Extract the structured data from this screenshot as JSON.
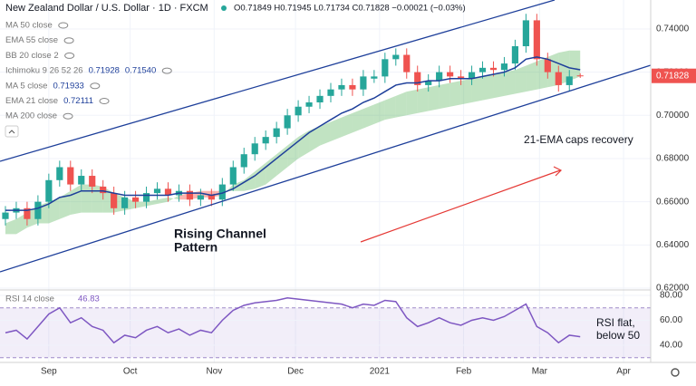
{
  "chart_data": {
    "type": "candlestick",
    "title": "New Zealand Dollar / U.S. Dollar · 1D · FXCM",
    "ohlc_header": "O0.71849 H0.71945 L0.71734 C0.71828 −0.00021 (−0.03%)",
    "indicators": [
      {
        "name": "MA 50 close"
      },
      {
        "name": "EMA 55 close"
      },
      {
        "name": "BB 20 close 2"
      },
      {
        "name": "Ichimoku 9 26 52 26",
        "values": [
          "0.71928",
          "0.71540"
        ]
      },
      {
        "name": "MA 5 close",
        "values": [
          "0.71933"
        ]
      },
      {
        "name": "EMA 21 close",
        "values": [
          "0.72111"
        ]
      },
      {
        "name": "MA 200 close"
      }
    ],
    "last_price_label": "0.71828",
    "up_color": "#26a69a",
    "down_color": "#ef5350",
    "x": [
      -16,
      -12,
      -8,
      -4,
      0,
      4,
      8,
      12,
      16,
      20,
      24,
      28,
      32,
      36,
      40,
      44,
      48,
      52,
      56,
      60,
      64,
      68,
      72,
      76,
      80,
      84,
      88,
      92,
      96,
      100,
      104,
      108,
      112,
      116,
      120,
      124,
      128,
      132,
      136,
      140,
      144,
      148,
      152,
      156,
      160,
      164,
      168,
      172,
      176,
      180,
      184,
      188,
      192,
      196
    ],
    "ohlc": [
      [
        0.652,
        0.658,
        0.649,
        0.655
      ],
      [
        0.655,
        0.66,
        0.652,
        0.657
      ],
      [
        0.657,
        0.66,
        0.649,
        0.652
      ],
      [
        0.652,
        0.663,
        0.649,
        0.66
      ],
      [
        0.66,
        0.673,
        0.657,
        0.67
      ],
      [
        0.67,
        0.679,
        0.667,
        0.676
      ],
      [
        0.676,
        0.679,
        0.665,
        0.668
      ],
      [
        0.668,
        0.675,
        0.665,
        0.672
      ],
      [
        0.672,
        0.675,
        0.664,
        0.667
      ],
      [
        0.667,
        0.67,
        0.661,
        0.664
      ],
      [
        0.664,
        0.667,
        0.654,
        0.657
      ],
      [
        0.657,
        0.665,
        0.654,
        0.662
      ],
      [
        0.662,
        0.665,
        0.657,
        0.66
      ],
      [
        0.66,
        0.667,
        0.657,
        0.664
      ],
      [
        0.664,
        0.669,
        0.661,
        0.666
      ],
      [
        0.666,
        0.669,
        0.66,
        0.663
      ],
      [
        0.663,
        0.668,
        0.66,
        0.665
      ],
      [
        0.665,
        0.668,
        0.658,
        0.661
      ],
      [
        0.661,
        0.666,
        0.658,
        0.663
      ],
      [
        0.663,
        0.666,
        0.658,
        0.661
      ],
      [
        0.661,
        0.671,
        0.658,
        0.668
      ],
      [
        0.668,
        0.679,
        0.665,
        0.676
      ],
      [
        0.676,
        0.685,
        0.673,
        0.682
      ],
      [
        0.682,
        0.69,
        0.679,
        0.687
      ],
      [
        0.687,
        0.693,
        0.684,
        0.69
      ],
      [
        0.69,
        0.697,
        0.687,
        0.694
      ],
      [
        0.694,
        0.703,
        0.691,
        0.7
      ],
      [
        0.7,
        0.707,
        0.697,
        0.704
      ],
      [
        0.704,
        0.709,
        0.701,
        0.706
      ],
      [
        0.706,
        0.712,
        0.703,
        0.709
      ],
      [
        0.709,
        0.715,
        0.706,
        0.712
      ],
      [
        0.712,
        0.717,
        0.709,
        0.714
      ],
      [
        0.714,
        0.717,
        0.709,
        0.712
      ],
      [
        0.712,
        0.721,
        0.709,
        0.718
      ],
      [
        0.717,
        0.721,
        0.715,
        0.718
      ],
      [
        0.718,
        0.729,
        0.715,
        0.726
      ],
      [
        0.726,
        0.731,
        0.723,
        0.728
      ],
      [
        0.728,
        0.731,
        0.717,
        0.72
      ],
      [
        0.72,
        0.723,
        0.711,
        0.714
      ],
      [
        0.714,
        0.719,
        0.711,
        0.716
      ],
      [
        0.716,
        0.723,
        0.713,
        0.72
      ],
      [
        0.72,
        0.723,
        0.715,
        0.718
      ],
      [
        0.718,
        0.721,
        0.714,
        0.717
      ],
      [
        0.717,
        0.723,
        0.714,
        0.72
      ],
      [
        0.72,
        0.725,
        0.717,
        0.722
      ],
      [
        0.722,
        0.725,
        0.718,
        0.721
      ],
      [
        0.721,
        0.727,
        0.718,
        0.724
      ],
      [
        0.724,
        0.735,
        0.721,
        0.732
      ],
      [
        0.732,
        0.747,
        0.729,
        0.744
      ],
      [
        0.744,
        0.747,
        0.723,
        0.726
      ],
      [
        0.726,
        0.729,
        0.717,
        0.72
      ],
      [
        0.72,
        0.723,
        0.711,
        0.714
      ],
      [
        0.714,
        0.721,
        0.711,
        0.718
      ],
      [
        0.71849,
        0.71945,
        0.71734,
        0.71828
      ]
    ],
    "ema21": {
      "color": "#1e3f9a",
      "values": [
        0.656,
        0.656,
        0.656,
        0.657,
        0.659,
        0.662,
        0.663,
        0.665,
        0.665,
        0.665,
        0.664,
        0.663,
        0.663,
        0.663,
        0.663,
        0.663,
        0.664,
        0.664,
        0.664,
        0.663,
        0.664,
        0.666,
        0.669,
        0.672,
        0.676,
        0.68,
        0.684,
        0.688,
        0.692,
        0.695,
        0.698,
        0.701,
        0.703,
        0.706,
        0.708,
        0.711,
        0.714,
        0.715,
        0.715,
        0.716,
        0.716,
        0.717,
        0.717,
        0.717,
        0.718,
        0.719,
        0.72,
        0.722,
        0.726,
        0.727,
        0.726,
        0.724,
        0.722,
        0.7211
      ]
    },
    "cloud": {
      "up_color": "rgba(76,175,80,0.35)",
      "down_color": "rgba(244,67,54,0.4)",
      "span_a": [
        0.65,
        0.652,
        0.655,
        0.658,
        0.66,
        0.662,
        0.665,
        0.668,
        0.668,
        0.667,
        0.664,
        0.662,
        0.66,
        0.66,
        0.661,
        0.662,
        0.661,
        0.661,
        0.662,
        0.662,
        0.663,
        0.668,
        0.67,
        0.674,
        0.678,
        0.682,
        0.686,
        0.69,
        0.693,
        0.695,
        0.697,
        0.699,
        0.701,
        0.703,
        0.705,
        0.707,
        0.709,
        0.711,
        0.712,
        0.713,
        0.714,
        0.715,
        0.716,
        0.717,
        0.718,
        0.719,
        0.72,
        0.721,
        0.723,
        0.725,
        0.727,
        0.729,
        0.73,
        0.73
      ],
      "span_b": [
        0.645,
        0.645,
        0.648,
        0.65,
        0.65,
        0.652,
        0.654,
        0.655,
        0.655,
        0.655,
        0.655,
        0.656,
        0.657,
        0.658,
        0.659,
        0.66,
        0.663,
        0.664,
        0.665,
        0.665,
        0.665,
        0.665,
        0.665,
        0.666,
        0.668,
        0.672,
        0.676,
        0.68,
        0.683,
        0.686,
        0.688,
        0.69,
        0.692,
        0.694,
        0.696,
        0.698,
        0.699,
        0.7,
        0.701,
        0.702,
        0.703,
        0.704,
        0.705,
        0.706,
        0.707,
        0.708,
        0.709,
        0.71,
        0.711,
        0.712,
        0.713,
        0.714,
        0.716,
        0.718
      ]
    },
    "annotations": [
      "21-EMA caps recovery",
      "Rising Channel",
      "Pattern"
    ],
    "xlim": [
      -18,
      222
    ],
    "xticks": [
      {
        "value": 0,
        "label": "Sep"
      },
      {
        "value": 30,
        "label": "Oct"
      },
      {
        "value": 61,
        "label": "Nov"
      },
      {
        "value": 91,
        "label": "Dec"
      },
      {
        "value": 122,
        "label": "2021"
      },
      {
        "value": 153,
        "label": "Feb"
      },
      {
        "value": 181,
        "label": "Mar"
      },
      {
        "value": 212,
        "label": "Apr"
      }
    ],
    "ylim": [
      0.62,
      0.7534
    ],
    "yticks": [
      {
        "value": 0.62,
        "label": "0.62000"
      },
      {
        "value": 0.64,
        "label": "0.64000"
      },
      {
        "value": 0.66,
        "label": "0.66000"
      },
      {
        "value": 0.68,
        "label": "0.68000"
      },
      {
        "value": 0.7,
        "label": "0.70000"
      },
      {
        "value": 0.72,
        "label": "0.72000"
      },
      {
        "value": 0.74,
        "label": "0.74000"
      }
    ],
    "grid": true,
    "rsi": {
      "title": "RSI 14 close",
      "value_label": "46.83",
      "color": "#7e57c2",
      "values": [
        50,
        52,
        45,
        55,
        65,
        70,
        58,
        62,
        55,
        52,
        42,
        48,
        46,
        52,
        55,
        50,
        53,
        48,
        52,
        50,
        60,
        68,
        72,
        74,
        75,
        76,
        78,
        77,
        76,
        75,
        74,
        73,
        70,
        73,
        72,
        76,
        75,
        62,
        55,
        58,
        62,
        58,
        56,
        60,
        62,
        60,
        63,
        68,
        73,
        55,
        50,
        42,
        48,
        46.83
      ],
      "ylim": [
        27.6,
        82.9
      ],
      "yticks": [
        {
          "value": 40,
          "label": "40.00"
        },
        {
          "value": 60,
          "label": "60.00"
        },
        {
          "value": 80,
          "label": "80.00"
        }
      ],
      "band": [
        30,
        70
      ],
      "annotation": [
        "RSI flat,",
        "below 50"
      ]
    }
  }
}
